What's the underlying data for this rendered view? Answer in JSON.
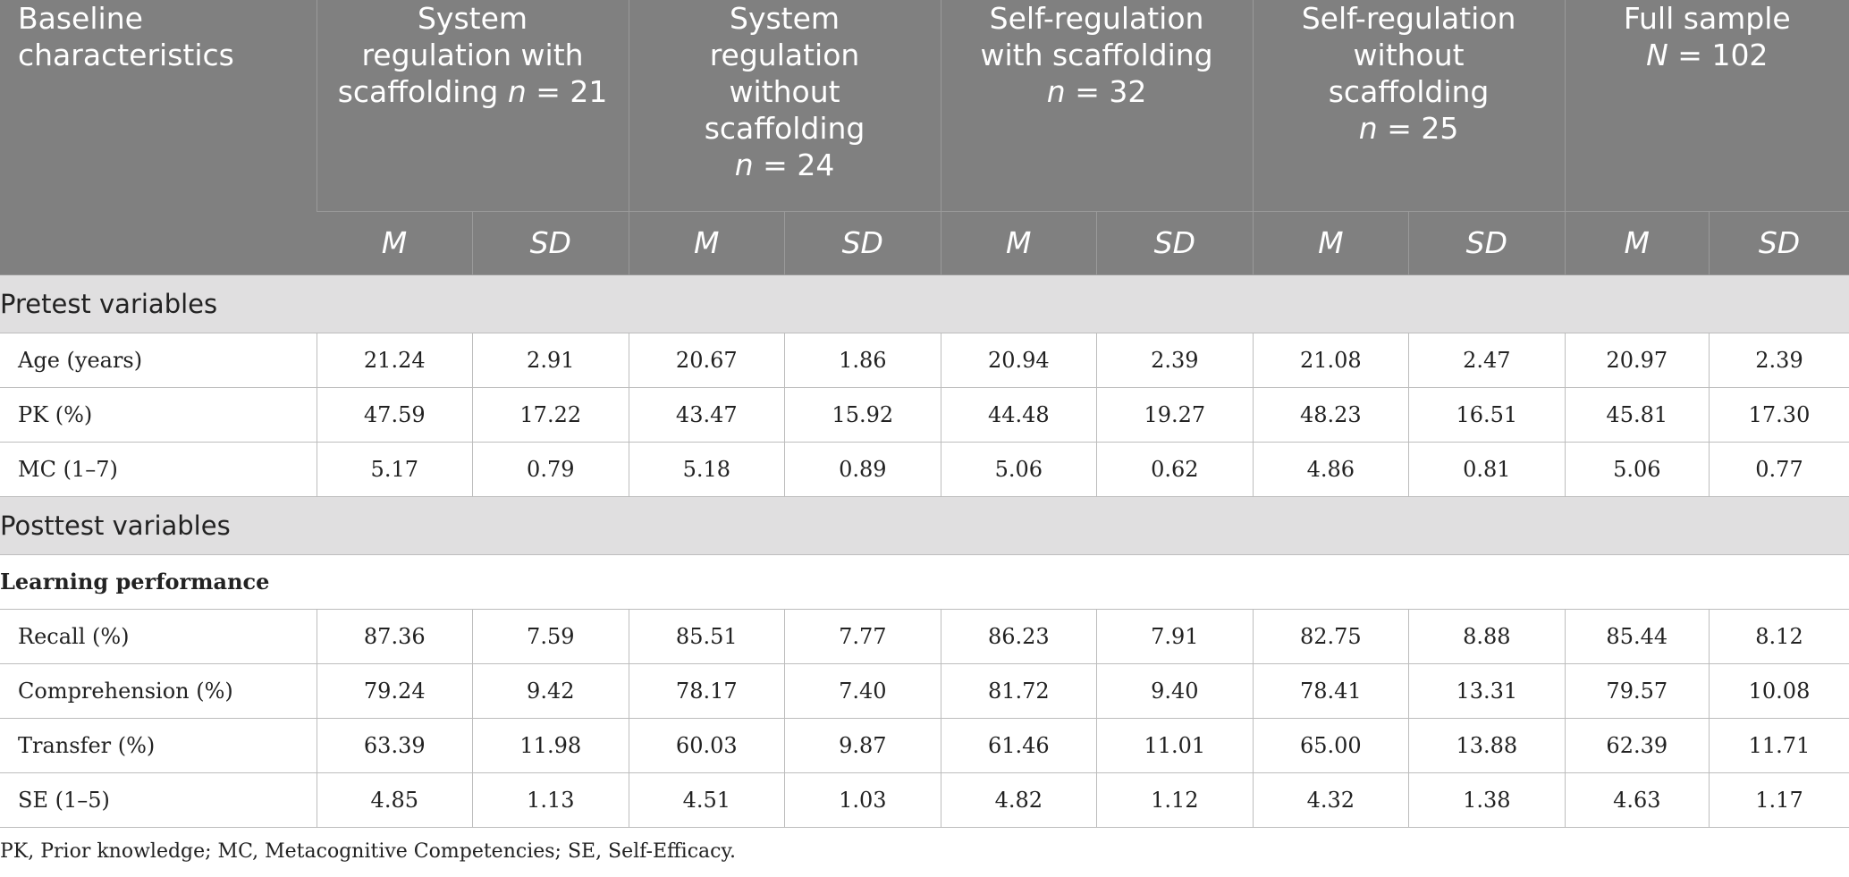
{
  "header": {
    "corner_line1": "Baseline",
    "corner_line2": "characteristics",
    "groups": [
      {
        "lines": [
          "System",
          "regulation with"
        ],
        "last_text": "scaffolding ",
        "n_symbol": "n",
        "n_value": " = 21"
      },
      {
        "lines": [
          "System",
          "regulation",
          "without",
          "scaffolding"
        ],
        "last_text": "",
        "n_symbol": "n",
        "n_value": " = 24"
      },
      {
        "lines": [
          "Self-regulation",
          "with scaffolding"
        ],
        "last_text": "",
        "n_symbol": "n",
        "n_value": " = 32"
      },
      {
        "lines": [
          "Self-regulation",
          "without",
          "scaffolding"
        ],
        "last_text": "",
        "n_symbol": "n",
        "n_value": " = 25"
      },
      {
        "lines": [
          "Full sample"
        ],
        "last_text": "",
        "n_symbol": "N",
        "n_value": " = 102"
      }
    ],
    "sub_labels": [
      "M",
      "SD",
      "M",
      "SD",
      "M",
      "SD",
      "M",
      "SD",
      "M",
      "SD"
    ]
  },
  "sections": {
    "pretest": "Pretest variables",
    "posttest": "Posttest variables",
    "learning": "Learning performance"
  },
  "pretest_rows": [
    {
      "label": "Age (years)",
      "values": [
        "21.24",
        "2.91",
        "20.67",
        "1.86",
        "20.94",
        "2.39",
        "21.08",
        "2.47",
        "20.97",
        "2.39"
      ]
    },
    {
      "label": "PK (%)",
      "values": [
        "47.59",
        "17.22",
        "43.47",
        "15.92",
        "44.48",
        "19.27",
        "48.23",
        "16.51",
        "45.81",
        "17.30"
      ]
    },
    {
      "label": "MC (1–7)",
      "values": [
        "5.17",
        "0.79",
        "5.18",
        "0.89",
        "5.06",
        "0.62",
        "4.86",
        "0.81",
        "5.06",
        "0.77"
      ]
    }
  ],
  "posttest_rows": [
    {
      "label": "Recall (%)",
      "values": [
        "87.36",
        "7.59",
        "85.51",
        "7.77",
        "86.23",
        "7.91",
        "82.75",
        "8.88",
        "85.44",
        "8.12"
      ]
    },
    {
      "label": "Comprehension (%)",
      "values": [
        "79.24",
        "9.42",
        "78.17",
        "7.40",
        "81.72",
        "9.40",
        "78.41",
        "13.31",
        "79.57",
        "10.08"
      ]
    },
    {
      "label": "Transfer (%)",
      "values": [
        "63.39",
        "11.98",
        "60.03",
        "9.87",
        "61.46",
        "11.01",
        "65.00",
        "13.88",
        "62.39",
        "11.71"
      ]
    },
    {
      "label": "SE (1–5)",
      "values": [
        "4.85",
        "1.13",
        "4.51",
        "1.03",
        "4.82",
        "1.12",
        "4.32",
        "1.38",
        "4.63",
        "1.17"
      ]
    }
  ],
  "footnote": "PK, Prior knowledge; MC, Metacognitive Competencies; SE, Self-Efficacy.",
  "colors": {
    "header_bg": "#808080",
    "header_text": "#ffffff",
    "section_bg": "#e0dfe0",
    "grid_line": "#bdbdbd"
  }
}
